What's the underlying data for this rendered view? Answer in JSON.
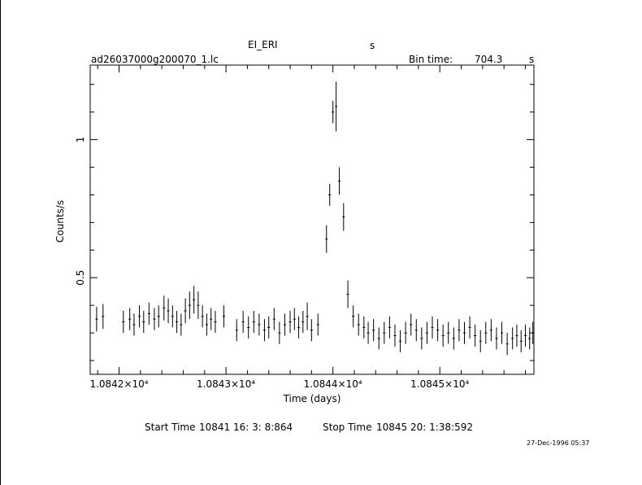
{
  "header": {
    "object": "EI_ERI",
    "object_suffix": "s",
    "file": "ad26037000g200070_1.lc",
    "bin_label": "Bin time:",
    "bin_value": "704.3",
    "bin_unit": "s"
  },
  "footer": {
    "start_label": "Start Time",
    "start_value": "10841 16: 3: 8:864",
    "stop_label": "Stop Time",
    "stop_value": "10845 20: 1:38:592",
    "stamp": "27-Dec-1996 05:37"
  },
  "chart_data": {
    "type": "scatter",
    "xlabel": "Time (days)",
    "ylabel": "Counts/s",
    "xlim": [
      10841.73,
      10845.88
    ],
    "ylim": [
      0.15,
      1.27
    ],
    "xticks": [
      10842,
      10843,
      10844,
      10845
    ],
    "xtick_labels": [
      "1.0842×10⁴",
      "1.0843×10⁴",
      "1.0844×10⁴",
      "1.0845×10⁴"
    ],
    "yticks": [
      0.5,
      1.0
    ],
    "ytick_labels": [
      "0.5",
      "1"
    ],
    "series": [
      {
        "x": [
          10841.79,
          10841.85,
          10842.04,
          10842.1,
          10842.14,
          10842.19,
          10842.23,
          10842.28,
          10842.33,
          10842.37,
          10842.42,
          10842.46,
          10842.5,
          10842.54,
          10842.58,
          10842.62,
          10842.66,
          10842.7,
          10842.74,
          10842.78,
          10842.82,
          10842.86,
          10842.9,
          10842.98,
          10843.1,
          10843.16,
          10843.21,
          10843.26,
          10843.31,
          10843.36,
          10843.4,
          10843.45,
          10843.5,
          10843.55,
          10843.6,
          10843.64,
          10843.68,
          10843.72,
          10843.76,
          10843.8,
          10843.86,
          10843.94,
          10843.97,
          10844.0,
          10844.03,
          10844.06,
          10844.1,
          10844.14,
          10844.19,
          10844.24,
          10844.29,
          10844.33,
          10844.38,
          10844.43,
          10844.48,
          10844.53,
          10844.58,
          10844.63,
          10844.68,
          10844.73,
          10844.78,
          10844.83,
          10844.88,
          10844.93,
          10844.98,
          10845.03,
          10845.08,
          10845.13,
          10845.18,
          10845.23,
          10845.28,
          10845.33,
          10845.38,
          10845.43,
          10845.48,
          10845.53,
          10845.58,
          10845.63,
          10845.68,
          10845.72,
          10845.76,
          10845.8,
          10845.84,
          10845.87
        ],
        "y": [
          0.35,
          0.36,
          0.34,
          0.35,
          0.33,
          0.36,
          0.34,
          0.37,
          0.35,
          0.36,
          0.39,
          0.38,
          0.36,
          0.34,
          0.33,
          0.38,
          0.4,
          0.42,
          0.4,
          0.36,
          0.33,
          0.35,
          0.34,
          0.36,
          0.31,
          0.34,
          0.32,
          0.34,
          0.33,
          0.31,
          0.32,
          0.35,
          0.3,
          0.33,
          0.34,
          0.35,
          0.32,
          0.34,
          0.36,
          0.31,
          0.33,
          0.64,
          0.8,
          1.1,
          1.12,
          0.85,
          0.72,
          0.44,
          0.36,
          0.33,
          0.32,
          0.3,
          0.31,
          0.28,
          0.3,
          0.32,
          0.29,
          0.27,
          0.3,
          0.33,
          0.31,
          0.28,
          0.3,
          0.32,
          0.31,
          0.29,
          0.3,
          0.28,
          0.31,
          0.3,
          0.32,
          0.29,
          0.27,
          0.3,
          0.31,
          0.28,
          0.3,
          0.26,
          0.28,
          0.29,
          0.27,
          0.29,
          0.28,
          0.3
        ],
        "err": [
          0.045,
          0.045,
          0.04,
          0.04,
          0.04,
          0.04,
          0.04,
          0.04,
          0.04,
          0.04,
          0.045,
          0.045,
          0.04,
          0.04,
          0.04,
          0.045,
          0.05,
          0.05,
          0.05,
          0.04,
          0.04,
          0.04,
          0.04,
          0.04,
          0.04,
          0.04,
          0.04,
          0.04,
          0.04,
          0.04,
          0.04,
          0.04,
          0.04,
          0.04,
          0.04,
          0.04,
          0.04,
          0.04,
          0.05,
          0.04,
          0.04,
          0.05,
          0.04,
          0.04,
          0.09,
          0.05,
          0.05,
          0.05,
          0.04,
          0.04,
          0.04,
          0.04,
          0.04,
          0.04,
          0.04,
          0.04,
          0.04,
          0.04,
          0.04,
          0.04,
          0.04,
          0.04,
          0.04,
          0.04,
          0.04,
          0.04,
          0.04,
          0.04,
          0.04,
          0.04,
          0.04,
          0.04,
          0.04,
          0.04,
          0.04,
          0.04,
          0.04,
          0.04,
          0.04,
          0.04,
          0.04,
          0.04,
          0.04,
          0.04
        ]
      }
    ]
  }
}
